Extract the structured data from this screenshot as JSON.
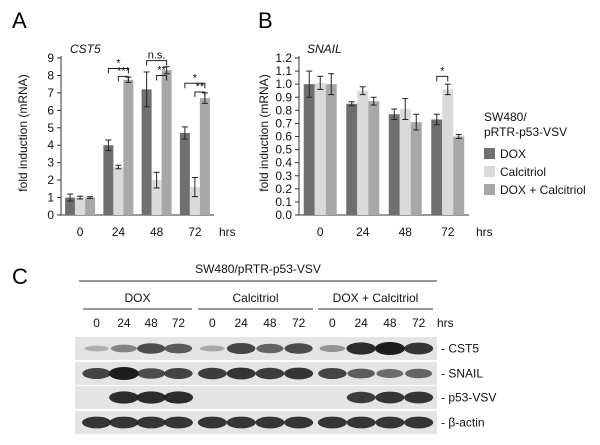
{
  "colors": {
    "dox": "#6f6f6f",
    "calcitriol": "#dadada",
    "dox_calcitriol": "#a8a8a8",
    "axis": "#333333",
    "band": "#1c1c1c",
    "membrane": "#e4e4e4"
  },
  "chart_data": [
    {
      "panel": "A",
      "type": "bar",
      "gene": "CST5",
      "ylabel": "fold induction (mRNA)",
      "xunit": "hrs",
      "ylim": [
        0,
        9
      ],
      "yticks": [
        0,
        1,
        2,
        3,
        4,
        5,
        6,
        7,
        8,
        9
      ],
      "categories": [
        "0",
        "24",
        "48",
        "72"
      ],
      "series": [
        {
          "key": "dox",
          "values": [
            1.0,
            4.0,
            7.2,
            4.7
          ],
          "errors": [
            0.2,
            0.3,
            1.0,
            0.35
          ]
        },
        {
          "key": "calcitriol",
          "values": [
            1.0,
            2.75,
            2.0,
            1.6
          ],
          "errors": [
            0.08,
            0.1,
            0.45,
            0.55
          ]
        },
        {
          "key": "dox_calcitriol",
          "values": [
            1.0,
            7.75,
            8.3,
            6.7
          ],
          "errors": [
            0.05,
            0.15,
            0.2,
            0.3
          ]
        }
      ],
      "significance": [
        {
          "group": 1,
          "pair": [
            0,
            2
          ],
          "label": "*",
          "y": 8.4
        },
        {
          "group": 1,
          "pair": [
            1,
            2
          ],
          "label": "***",
          "y": 7.95
        },
        {
          "group": 2,
          "pair": [
            0,
            2
          ],
          "label": "n.s.",
          "y": 8.85
        },
        {
          "group": 2,
          "pair": [
            1,
            2
          ],
          "label": "**",
          "y": 8.0
        },
        {
          "group": 3,
          "pair": [
            0,
            2
          ],
          "label": "*",
          "y": 7.55
        },
        {
          "group": 3,
          "pair": [
            1,
            2
          ],
          "label": "**",
          "y": 7.05
        }
      ]
    },
    {
      "panel": "B",
      "type": "bar",
      "gene": "SNAIL",
      "ylabel": "fold induction (mRNA)",
      "xunit": "hrs",
      "ylim": [
        0,
        1.2
      ],
      "yticks": [
        0,
        0.1,
        0.2,
        0.3,
        0.4,
        0.5,
        0.6,
        0.7,
        0.8,
        0.9,
        1.0,
        1.1,
        1.2
      ],
      "categories": [
        "0",
        "24",
        "48",
        "72"
      ],
      "series": [
        {
          "key": "dox",
          "values": [
            1.0,
            0.85,
            0.77,
            0.73
          ],
          "errors": [
            0.1,
            0.015,
            0.04,
            0.04
          ]
        },
        {
          "key": "calcitriol",
          "values": [
            1.01,
            0.95,
            0.81,
            0.96
          ],
          "errors": [
            0.05,
            0.03,
            0.08,
            0.04
          ]
        },
        {
          "key": "dox_calcitriol",
          "values": [
            1.0,
            0.87,
            0.71,
            0.6
          ],
          "errors": [
            0.08,
            0.03,
            0.06,
            0.015
          ]
        }
      ],
      "significance": [
        {
          "group": 3,
          "pair": [
            0,
            1
          ],
          "label": "*",
          "y": 1.06
        }
      ]
    }
  ],
  "legend": {
    "title_line1": "SW480/",
    "title_line2": "pRTR-p53-VSV",
    "items": [
      {
        "key": "dox",
        "label": "DOX"
      },
      {
        "key": "calcitriol",
        "label": "Calcitriol"
      },
      {
        "key": "dox_calcitriol",
        "label": "DOX + Calcitriol"
      }
    ]
  },
  "blot": {
    "panel": "C",
    "cell_line": "SW480/pRTR-p53-VSV",
    "groups": [
      "DOX",
      "Calcitriol",
      "DOX + Calcitriol"
    ],
    "timepoints": [
      "0",
      "24",
      "48",
      "72"
    ],
    "unit": "hrs",
    "rows": [
      {
        "label": "- CST5",
        "intensity": [
          0.08,
          0.35,
          0.7,
          0.6,
          0.12,
          0.75,
          0.55,
          0.7,
          0.25,
          0.9,
          1.0,
          0.85
        ]
      },
      {
        "label": "- SNAIL",
        "intensity": [
          0.75,
          1.0,
          0.7,
          0.75,
          0.8,
          0.85,
          0.8,
          0.85,
          0.75,
          0.6,
          0.5,
          0.55
        ]
      },
      {
        "label": "- p53-VSV",
        "intensity": [
          0.0,
          0.9,
          0.9,
          0.9,
          0.0,
          0.0,
          0.0,
          0.0,
          0.0,
          0.8,
          0.85,
          0.85
        ]
      },
      {
        "label": "- β-actin",
        "intensity": [
          0.85,
          0.85,
          0.85,
          0.85,
          0.85,
          0.85,
          0.85,
          0.85,
          0.85,
          0.85,
          0.85,
          0.85
        ]
      }
    ]
  }
}
